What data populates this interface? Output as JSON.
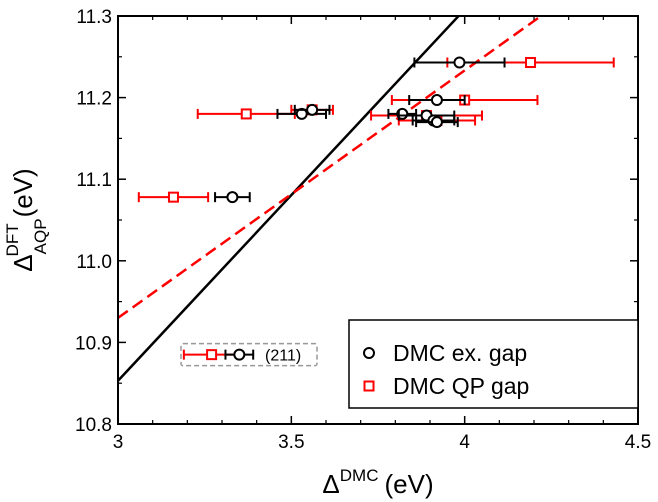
{
  "chart_data": {
    "type": "scatter",
    "xlabel": {
      "main": "Δ",
      "sup": "DMC",
      "unit": "(eV)"
    },
    "ylabel": {
      "main": "Δ",
      "sup": "DFT",
      "sub": "AQP",
      "unit": "(eV)"
    },
    "xlim": [
      3.0,
      4.5
    ],
    "ylim": [
      10.8,
      11.3
    ],
    "xticks": [
      3.0,
      3.5,
      4.0,
      4.5
    ],
    "xtick_labels": [
      "3",
      "3.5",
      "4",
      "4.5"
    ],
    "yticks": [
      10.8,
      10.9,
      11.0,
      11.1,
      11.2,
      11.3
    ],
    "ytick_labels": [
      "10.8",
      "10.9",
      "11.0",
      "11.1",
      "11.2",
      "11.3"
    ],
    "grid": false,
    "legend_placement": "bottom-right",
    "series": [
      {
        "name": "DMC ex. gap",
        "marker": "circle",
        "color": "#000000",
        "points": [
          {
            "x": 3.33,
            "y": 11.078,
            "xerr": 0.05
          },
          {
            "x": 3.53,
            "y": 11.18,
            "xerr": 0.07
          },
          {
            "x": 3.56,
            "y": 11.185,
            "xerr": 0.05
          },
          {
            "x": 3.82,
            "y": 11.18,
            "xerr": 0.04
          },
          {
            "x": 3.92,
            "y": 11.197,
            "xerr": 0.08
          },
          {
            "x": 3.89,
            "y": 11.178,
            "xerr": 0.08
          },
          {
            "x": 3.91,
            "y": 11.172,
            "xerr": 0.06
          },
          {
            "x": 3.92,
            "y": 11.17,
            "xerr": 0.06
          },
          {
            "x": 3.985,
            "y": 11.243,
            "xerr": 0.13
          }
        ],
        "fit_line": {
          "x": [
            3.0,
            4.0
          ],
          "y": [
            10.853,
            11.308
          ]
        }
      },
      {
        "name": "DMC QP gap",
        "marker": "square",
        "color": "#ff0000",
        "points": [
          {
            "x": 3.16,
            "y": 11.078,
            "xerr": 0.1
          },
          {
            "x": 3.37,
            "y": 11.18,
            "xerr": 0.14
          },
          {
            "x": 3.56,
            "y": 11.185,
            "xerr": 0.06
          },
          {
            "x": 3.89,
            "y": 11.178,
            "xerr": 0.16
          },
          {
            "x": 4.0,
            "y": 11.197,
            "xerr": 0.21
          },
          {
            "x": 3.92,
            "y": 11.172,
            "xerr": 0.11
          },
          {
            "x": 4.19,
            "y": 11.243,
            "xerr": 0.24
          }
        ],
        "fit_line": {
          "x": [
            3.0,
            4.22
          ],
          "y": [
            10.93,
            11.3
          ]
        }
      }
    ],
    "annotation": {
      "label": "(211)",
      "points": [
        {
          "series": "DMC ex. gap",
          "x": 3.35,
          "y": 10.885,
          "xerr": 0.04
        },
        {
          "series": "DMC QP gap",
          "x": 3.27,
          "y": 10.885,
          "xerr": 0.08
        }
      ]
    }
  }
}
